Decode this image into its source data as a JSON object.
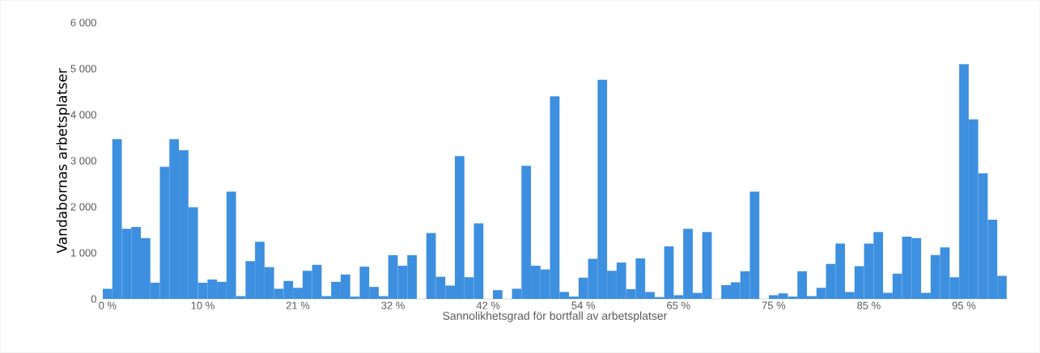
{
  "chart_data": {
    "type": "bar",
    "xlabel": "Sannolikhetsgrad för bortfall av arbetsplatser",
    "ylabel": "Vandabornas arbetsplatser",
    "categories": [
      "0 %",
      null,
      null,
      null,
      null,
      null,
      null,
      null,
      null,
      null,
      "10 %",
      null,
      null,
      null,
      null,
      null,
      null,
      null,
      null,
      null,
      "21 %",
      null,
      null,
      null,
      null,
      null,
      null,
      null,
      null,
      null,
      "32 %",
      null,
      null,
      null,
      null,
      null,
      null,
      null,
      null,
      null,
      "42 %",
      null,
      null,
      null,
      null,
      null,
      null,
      null,
      null,
      null,
      "54 %",
      null,
      null,
      null,
      null,
      null,
      null,
      null,
      null,
      null,
      "65 %",
      null,
      null,
      null,
      null,
      null,
      null,
      null,
      null,
      null,
      "75 %",
      null,
      null,
      null,
      null,
      null,
      null,
      null,
      null,
      null,
      "85 %",
      null,
      null,
      null,
      null,
      null,
      null,
      null,
      null,
      null,
      "95 %",
      null,
      null,
      null,
      null
    ],
    "values": [
      220,
      3470,
      1520,
      1560,
      1320,
      350,
      2870,
      3470,
      3230,
      1990,
      350,
      420,
      370,
      2330,
      60,
      820,
      1240,
      690,
      220,
      390,
      240,
      610,
      740,
      60,
      370,
      530,
      50,
      700,
      260,
      60,
      950,
      720,
      950,
      0,
      1430,
      480,
      290,
      3100,
      470,
      1640,
      0,
      190,
      0,
      220,
      2890,
      720,
      640,
      4400,
      150,
      50,
      460,
      870,
      4760,
      610,
      790,
      210,
      880,
      150,
      40,
      1140,
      80,
      1520,
      130,
      1450,
      0,
      300,
      360,
      600,
      2330,
      0,
      80,
      120,
      50,
      600,
      60,
      240,
      760,
      1200,
      150,
      710,
      1200,
      1450,
      130,
      550,
      1350,
      1320,
      130,
      950,
      1120,
      470,
      5100,
      3900,
      2730,
      1720,
      500
    ],
    "color": "#3d8fdf",
    "ylim": [
      0,
      6000
    ],
    "yticks": [
      0,
      {
        "value": 1000,
        "label": "1 000"
      },
      {
        "value": 2000,
        "label": "2 000"
      },
      {
        "value": 3000,
        "label": "3 000"
      },
      {
        "value": 4000,
        "label": "4 000"
      },
      {
        "value": 5000,
        "label": "5 000"
      },
      {
        "value": 6000,
        "label": "6 000"
      }
    ]
  }
}
